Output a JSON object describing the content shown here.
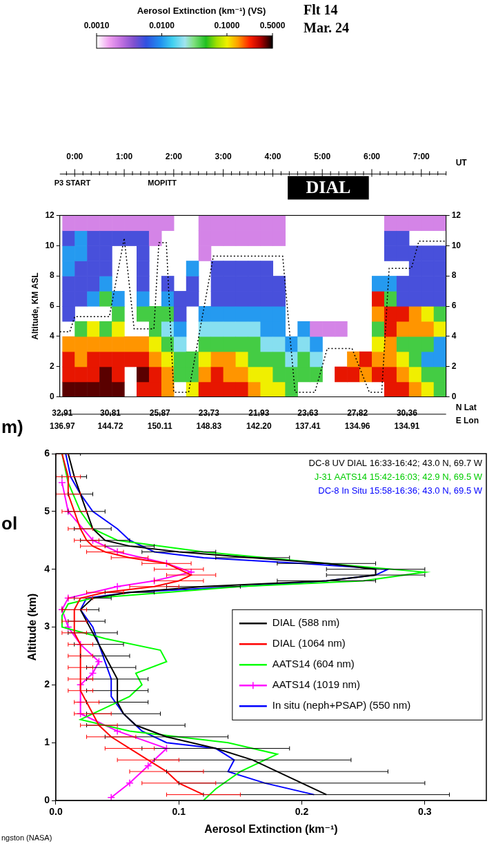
{
  "chart_data": [
    {
      "type": "heatmap",
      "title": "Aerosol Extinction (km⁻¹) (VS)",
      "annotations": [
        "Flt 14",
        "Mar. 24",
        "P3 START",
        "MOPITT",
        "DIAL"
      ],
      "xlabel": "UT",
      "xlim": [
        -0.3,
        7.5
      ],
      "xticks": [
        {
          "value": 0,
          "label": "0:00"
        },
        {
          "value": 1,
          "label": "1:00"
        },
        {
          "value": 2,
          "label": "2:00"
        },
        {
          "value": 3,
          "label": "3:00"
        },
        {
          "value": 4,
          "label": "4:00"
        },
        {
          "value": 5,
          "label": "5:00"
        },
        {
          "value": 6,
          "label": "6:00"
        },
        {
          "value": 7,
          "label": "7:00"
        }
      ],
      "ylabel": "Altitude, KM ASL",
      "ylim": [
        0,
        12
      ],
      "yticks": [
        0,
        2,
        4,
        6,
        8,
        10,
        12
      ],
      "y2lim": [
        0,
        12
      ],
      "y2ticks": [
        0,
        2,
        4,
        6,
        8,
        10,
        12
      ],
      "x2_labels": {
        "x": [
          -0.25,
          0.72,
          1.72,
          2.71,
          3.72,
          4.71,
          5.71,
          6.71
        ],
        "rows": [
          {
            "title": "N Lat",
            "labels": [
              "32.91",
              "30.81",
              "25.87",
              "23.73",
              "21.93",
              "23.63",
              "27.82",
              "30.36"
            ]
          },
          {
            "title": "E Lon",
            "labels": [
              "136.97",
              "144.72",
              "150.11",
              "148.83",
              "142.20",
              "137.41",
              "134.96",
              "134.91"
            ]
          }
        ]
      },
      "colorbar": {
        "range": [
          0.001,
          0.5
        ],
        "log": true,
        "ticks": [
          {
            "value": 0.001,
            "label": "0.0010"
          },
          {
            "value": 0.01,
            "label": "0.0100"
          },
          {
            "value": 0.1,
            "label": "0.1000"
          },
          {
            "value": 0.5,
            "label": "0.5000"
          }
        ]
      },
      "x_bins": [
        -0.25,
        0,
        0.25,
        0.5,
        0.75,
        1,
        1.25,
        1.5,
        1.75,
        2,
        2.25,
        2.5,
        2.75,
        3,
        3.25,
        3.5,
        3.75,
        4,
        4.25,
        4.5,
        4.75,
        5,
        5.25,
        5.5,
        5.75,
        6,
        6.25,
        6.5,
        6.75,
        7,
        7.25,
        7.5
      ],
      "y_bins": [
        0,
        1,
        2,
        3,
        4,
        5,
        6,
        7,
        8,
        9,
        10,
        11,
        12
      ],
      "cells": [
        [
          0.4,
          0.25,
          0.25,
          0.15,
          null,
          0.005,
          0.005,
          0.005,
          0.01,
          0.01,
          0.005,
          0.002
        ],
        [
          0.4,
          0.25,
          0.15,
          0.15,
          0.04,
          null,
          0.005,
          0.005,
          0.005,
          0.01,
          0.01,
          0.002
        ],
        [
          0.4,
          0.25,
          0.25,
          0.15,
          0.1,
          null,
          0.01,
          0.005,
          0.005,
          0.005,
          0.005,
          0.002
        ],
        [
          0.4,
          0.4,
          0.25,
          0.15,
          0.04,
          null,
          0.04,
          0.01,
          0.005,
          0.005,
          0.005,
          0.002
        ],
        [
          0.4,
          0.25,
          0.25,
          0.15,
          0.1,
          0.04,
          0.01,
          null,
          null,
          null,
          0.005,
          0.002
        ],
        [
          null,
          null,
          0.25,
          0.15,
          null,
          null,
          null,
          null,
          null,
          null,
          0.005,
          0.002
        ],
        [
          0.25,
          0.4,
          0.25,
          0.15,
          null,
          0.04,
          0.01,
          0.005,
          0.005,
          0.005,
          0.005,
          0.002
        ],
        [
          0.25,
          0.25,
          0.15,
          0.1,
          0.04,
          0.04,
          null,
          null,
          null,
          null,
          0.002,
          0.002
        ],
        [
          0.15,
          0.15,
          0.1,
          0.04,
          0.02,
          0.04,
          0.01,
          0.005,
          null,
          null,
          null,
          0.002
        ],
        [
          null,
          0.04,
          0.04,
          0.02,
          0.01,
          0.005,
          0.005,
          null,
          null,
          null,
          null,
          null
        ],
        [
          0.1,
          0.04,
          0.04,
          null,
          null,
          null,
          0.005,
          0.005,
          0.01,
          null,
          null,
          null
        ],
        [
          0.25,
          0.15,
          0.1,
          0.04,
          0.02,
          0.01,
          null,
          null,
          null,
          0.002,
          0.002,
          0.002
        ],
        [
          0.25,
          0.25,
          0.15,
          0.04,
          0.02,
          0.01,
          0.005,
          0.005,
          0.005,
          null,
          0.002,
          0.002
        ],
        [
          0.25,
          0.15,
          0.15,
          0.04,
          0.02,
          0.01,
          0.005,
          0.005,
          0.005,
          null,
          0.002,
          0.002
        ],
        [
          0.25,
          0.15,
          0.1,
          0.04,
          0.02,
          0.01,
          0.005,
          0.005,
          0.005,
          null,
          0.002,
          0.002
        ],
        [
          0.15,
          0.1,
          0.04,
          0.04,
          0.02,
          0.01,
          0.005,
          0.005,
          0.005,
          null,
          0.002,
          0.002
        ],
        [
          0.1,
          0.1,
          0.04,
          0.02,
          0.01,
          0.01,
          0.005,
          0.005,
          0.005,
          null,
          0.002,
          0.002
        ],
        [
          0.1,
          0.04,
          0.04,
          0.02,
          0.01,
          0.01,
          0.005,
          0.005,
          null,
          null,
          0.002,
          0.002
        ],
        [
          0.04,
          0.04,
          0.02,
          0.01,
          null,
          null,
          null,
          null,
          null,
          null,
          null,
          null
        ],
        [
          null,
          0.04,
          0.04,
          0.02,
          0.01,
          null,
          null,
          null,
          null,
          null,
          null,
          null
        ],
        [
          null,
          0.04,
          0.02,
          0.01,
          0.002,
          null,
          null,
          null,
          null,
          null,
          null,
          null
        ],
        [
          null,
          null,
          null,
          null,
          0.002,
          null,
          null,
          null,
          null,
          null,
          null,
          null
        ],
        [
          null,
          0.25,
          null,
          null,
          0.002,
          null,
          null,
          null,
          null,
          null,
          null,
          null
        ],
        [
          null,
          0.25,
          0.15,
          null,
          null,
          null,
          null,
          null,
          null,
          null,
          null,
          null
        ],
        [
          null,
          0.15,
          0.25,
          null,
          null,
          null,
          null,
          null,
          null,
          null,
          null,
          null
        ],
        [
          null,
          0.25,
          0.15,
          0.1,
          0.04,
          0.15,
          0.25,
          0.01,
          null,
          null,
          null,
          null
        ],
        [
          0.25,
          0.25,
          0.15,
          0.15,
          0.25,
          0.25,
          0.04,
          0.01,
          null,
          0.005,
          0.005,
          0.002
        ],
        [
          0.25,
          0.15,
          0.1,
          0.04,
          0.15,
          0.25,
          0.005,
          0.005,
          null,
          0.005,
          0.005,
          0.002
        ],
        [
          0.15,
          0.1,
          0.04,
          0.04,
          0.15,
          0.15,
          0.005,
          0.005,
          0.005,
          0.005,
          null,
          0.002
        ],
        [
          0.1,
          0.04,
          0.01,
          0.04,
          0.15,
          0.1,
          0.005,
          0.005,
          0.005,
          0.005,
          null,
          0.002
        ],
        [
          0.04,
          0.04,
          0.01,
          0.01,
          0.1,
          0.04,
          0.005,
          0.005,
          0.005,
          0.005,
          null,
          0.002
        ]
      ],
      "series": [
        {
          "type": "line",
          "color": "#000000",
          "line_style": "dotted",
          "x": [
            -0.3,
            -0.1,
            0.0,
            0.7,
            1.0,
            1.2,
            1.6,
            1.7,
            1.85,
            2.0,
            2.3,
            2.8,
            4.2,
            4.45,
            4.85,
            5.1,
            5.6,
            5.95,
            6.2,
            6.35,
            6.8,
            6.95,
            7.5
          ],
          "y": [
            4.3,
            4.3,
            5.3,
            5.3,
            10.5,
            4.5,
            4.5,
            10.2,
            10.2,
            0.3,
            0.3,
            9.3,
            9.3,
            0.3,
            0.3,
            3.2,
            3.2,
            0.3,
            0.3,
            8.5,
            8.5,
            10.3,
            10.3
          ]
        }
      ]
    },
    {
      "type": "line",
      "xlabel": "Aerosol Extinction (km⁻¹)",
      "ylabel": "Altitude (km)",
      "xlim": [
        0,
        0.35
      ],
      "xticks": [
        {
          "value": 0,
          "label": "0.0"
        },
        {
          "value": 0.1,
          "label": "0.1"
        },
        {
          "value": 0.2,
          "label": "0.2"
        },
        {
          "value": 0.3,
          "label": "0.3"
        }
      ],
      "ylim": [
        0,
        6
      ],
      "yticks": [
        0,
        1,
        2,
        3,
        4,
        5,
        6
      ],
      "legend": "center right",
      "annotations": [
        {
          "text": "DC-8 UV DIAL 16:33-16:42; 43.0 N, 69.7 W",
          "color": "#000000"
        },
        {
          "text": "J-31 AATS14 15:42-16:03; 42.9 N, 69.5 W",
          "color": "#00cc00"
        },
        {
          "text": "DC-8 In Situ 15:58-16:36; 43.0 N, 69.5 W",
          "color": "#0000ff"
        }
      ],
      "series": [
        {
          "name": "DIAL (588 nm)",
          "color": "#000000",
          "y": [
            0.1,
            0.3,
            0.5,
            0.7,
            0.9,
            1.1,
            1.3,
            1.5,
            1.7,
            1.9,
            2.1,
            2.3,
            2.5,
            2.7,
            2.9,
            3.1,
            3.3,
            3.5,
            3.6,
            3.7,
            3.8,
            3.9,
            4.0,
            4.1,
            4.2,
            4.3,
            4.4,
            4.5,
            4.7,
            5.0,
            5.3,
            5.6,
            6.0
          ],
          "x": [
            0.22,
            0.2,
            0.18,
            0.16,
            0.13,
            0.09,
            0.065,
            0.055,
            0.05,
            0.05,
            0.05,
            0.045,
            0.04,
            0.035,
            0.03,
            0.025,
            0.02,
            0.03,
            0.06,
            0.12,
            0.22,
            0.26,
            0.26,
            0.22,
            0.16,
            0.1,
            0.06,
            0.04,
            0.03,
            0.025,
            0.02,
            0.015,
            0.01
          ],
          "x_error": [
            0.1,
            0.1,
            0.09,
            0.08,
            0.06,
            0.05,
            0.04,
            0.03,
            0.025,
            0.025,
            0.025,
            0.02,
            0.02,
            0.02,
            0.02,
            0.015,
            0.015,
            0.015,
            0.02,
            0.03,
            0.04,
            0.04,
            0.04,
            0.04,
            0.03,
            0.03,
            0.02,
            0.02,
            0.015,
            0.015,
            0.01,
            0.01,
            0.01
          ]
        },
        {
          "name": "DIAL (1064 nm)",
          "color": "#ff0000",
          "y": [
            0.1,
            0.3,
            0.5,
            0.7,
            0.9,
            1.1,
            1.3,
            1.5,
            1.7,
            1.9,
            2.1,
            2.3,
            2.5,
            2.7,
            2.9,
            3.1,
            3.3,
            3.5,
            3.6,
            3.7,
            3.8,
            3.9,
            4.0,
            4.1,
            4.2,
            4.3,
            4.4,
            4.5,
            4.7,
            5.0,
            5.3,
            5.6,
            6.0
          ],
          "x": [
            0.12,
            0.1,
            0.09,
            0.075,
            0.06,
            0.045,
            0.035,
            0.03,
            0.025,
            0.02,
            0.02,
            0.02,
            0.02,
            0.02,
            0.015,
            0.015,
            0.015,
            0.02,
            0.04,
            0.08,
            0.1,
            0.11,
            0.1,
            0.09,
            0.06,
            0.04,
            0.03,
            0.025,
            0.02,
            0.015,
            0.01,
            0.01,
            0.005
          ],
          "x_error": [
            0.03,
            0.03,
            0.03,
            0.025,
            0.02,
            0.02,
            0.015,
            0.015,
            0.01,
            0.01,
            0.01,
            0.01,
            0.01,
            0.01,
            0.01,
            0.01,
            0.01,
            0.01,
            0.015,
            0.02,
            0.02,
            0.02,
            0.02,
            0.02,
            0.015,
            0.015,
            0.01,
            0.01,
            0.01,
            0.01,
            0.01,
            0.01,
            0.005
          ]
        },
        {
          "name": "AATS14 (604 nm)",
          "color": "#00ff00",
          "y": [
            0.0,
            0.2,
            0.5,
            0.8,
            1.0,
            1.2,
            1.4,
            1.6,
            1.8,
            2.0,
            2.2,
            2.4,
            2.6,
            2.8,
            3.0,
            3.2,
            3.4,
            3.5,
            3.6,
            3.7,
            3.8,
            3.95,
            4.1,
            4.3,
            4.5,
            4.7,
            5.0,
            5.5,
            6.0
          ],
          "x": [
            0.12,
            0.13,
            0.15,
            0.18,
            0.14,
            0.06,
            0.02,
            0.04,
            0.06,
            0.07,
            0.065,
            0.09,
            0.085,
            0.04,
            0.005,
            0.005,
            0.01,
            0.03,
            0.09,
            0.15,
            0.25,
            0.3,
            0.22,
            0.12,
            0.05,
            0.03,
            0.02,
            0.01,
            0.005
          ]
        },
        {
          "name": "AATS14 (1019 nm)",
          "color": "#ff00ff",
          "marker": "plus",
          "y": [
            0.05,
            0.3,
            0.6,
            0.9,
            1.2,
            1.5,
            1.7,
            2.0,
            2.2,
            2.4,
            2.7,
            3.0,
            3.3,
            3.5,
            3.7,
            3.8,
            3.95,
            4.1,
            4.3,
            4.5,
            5.0,
            5.5
          ],
          "x": [
            0.045,
            0.06,
            0.075,
            0.09,
            0.05,
            0.02,
            0.02,
            0.02,
            0.03,
            0.035,
            0.02,
            0.01,
            0.005,
            0.01,
            0.05,
            0.08,
            0.11,
            0.09,
            0.05,
            0.03,
            0.01,
            0.005
          ]
        },
        {
          "name": "In situ (neph+PSAP) (550 nm)",
          "color": "#0000ff",
          "y": [
            0.1,
            0.3,
            0.5,
            0.7,
            0.9,
            1.0,
            1.2,
            1.5,
            1.8,
            2.1,
            2.4,
            2.7,
            3.0,
            3.3,
            3.5,
            3.6,
            3.7,
            3.8,
            3.9,
            4.0,
            4.1,
            4.2,
            4.3,
            4.5,
            4.7,
            5.0,
            5.3,
            5.6,
            6.0
          ],
          "x": [
            0.21,
            0.17,
            0.14,
            0.145,
            0.13,
            0.09,
            0.07,
            0.055,
            0.045,
            0.045,
            0.04,
            0.035,
            0.03,
            0.02,
            0.025,
            0.06,
            0.15,
            0.22,
            0.26,
            0.27,
            0.2,
            0.12,
            0.08,
            0.06,
            0.05,
            0.03,
            0.02,
            0.012,
            0.008
          ]
        }
      ]
    }
  ],
  "fragments": [
    "m)",
    "ol",
    "ngston (NASA)"
  ]
}
